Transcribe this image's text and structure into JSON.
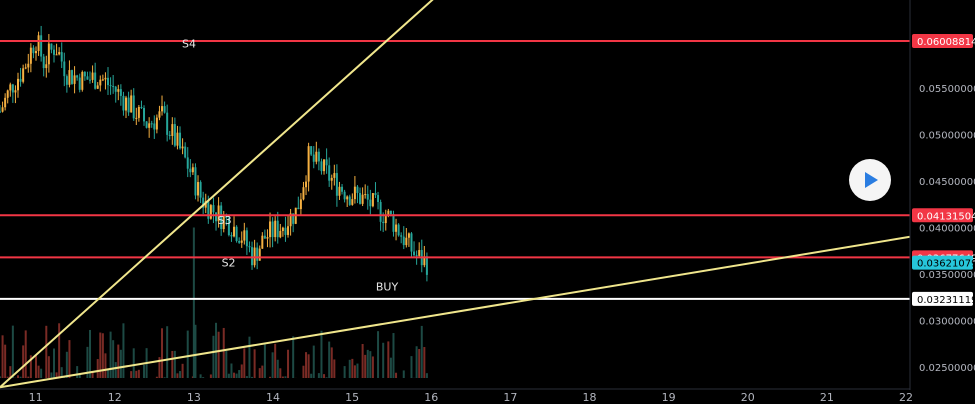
{
  "chart_data": {
    "type": "candlestick",
    "x_ticks": [
      "11",
      "12",
      "13",
      "14",
      "15",
      "16",
      "17",
      "18",
      "19",
      "20",
      "21",
      "22"
    ],
    "y_ticks": [
      "0.05500000",
      "0.05000000",
      "0.04500000",
      "0.04000000",
      "0.03500000",
      "0.03000000",
      "0.02500000"
    ],
    "ylim": [
      0.0225,
      0.0645
    ],
    "xlim": [
      10.55,
      22.05
    ],
    "grid": false,
    "colors": {
      "up": "#f5b041",
      "down": "#26a69a",
      "sr_line": "#f23645",
      "trend_line": "#f0e68c",
      "buy_line": "#ffffff"
    },
    "horizontal_lines": [
      {
        "value": 0.06008814,
        "label": "0.06008814",
        "color": "#f23645"
      },
      {
        "value": 0.04131504,
        "label": "0.04131504",
        "color": "#f23645"
      },
      {
        "value": 0.03677649,
        "label": "0.03677649",
        "color": "#f23645"
      },
      {
        "value": 0.03231119,
        "label": "0.03231119",
        "color": "#ffffff"
      }
    ],
    "price_tags": [
      {
        "value": 0.03621079,
        "label": "0.03621079",
        "color": "#26c6da"
      }
    ],
    "trend_lines": [
      {
        "from": [
          10.55,
          0.0228
        ],
        "to": [
          16.3,
          0.0667
        ]
      },
      {
        "from": [
          10.55,
          0.0228
        ],
        "to": [
          22.05,
          0.039
        ]
      }
    ],
    "annotations": [
      {
        "text": "S4",
        "x": 12.85,
        "y": 0.0594
      },
      {
        "text": "S3",
        "x": 13.3,
        "y": 0.0404
      },
      {
        "text": "S2",
        "x": 13.35,
        "y": 0.0358
      },
      {
        "text": "BUY",
        "x": 15.3,
        "y": 0.0332
      }
    ],
    "price_path": [
      [
        10.55,
        0.0525
      ],
      [
        10.7,
        0.0553
      ],
      [
        10.85,
        0.0571
      ],
      [
        11.0,
        0.0604
      ],
      [
        11.1,
        0.0578
      ],
      [
        11.25,
        0.0596
      ],
      [
        11.4,
        0.0566
      ],
      [
        11.6,
        0.0559
      ],
      [
        11.8,
        0.0562
      ],
      [
        12.0,
        0.0549
      ],
      [
        12.2,
        0.053
      ],
      [
        12.4,
        0.0512
      ],
      [
        12.6,
        0.052
      ],
      [
        12.8,
        0.0488
      ],
      [
        12.95,
        0.0462
      ],
      [
        13.1,
        0.043
      ],
      [
        13.25,
        0.0418
      ],
      [
        13.45,
        0.0405
      ],
      [
        13.6,
        0.0392
      ],
      [
        13.75,
        0.0368
      ],
      [
        13.9,
        0.039
      ],
      [
        14.1,
        0.0401
      ],
      [
        14.3,
        0.0418
      ],
      [
        14.45,
        0.0475
      ],
      [
        14.6,
        0.0465
      ],
      [
        14.75,
        0.0451
      ],
      [
        14.95,
        0.0437
      ],
      [
        15.15,
        0.0431
      ],
      [
        15.35,
        0.0418
      ],
      [
        15.5,
        0.0409
      ],
      [
        15.65,
        0.0389
      ],
      [
        15.8,
        0.037
      ],
      [
        15.95,
        0.0362
      ]
    ],
    "volume_range": [
      0.0225,
      0.0298
    ]
  },
  "play_button_icon": "play-icon"
}
